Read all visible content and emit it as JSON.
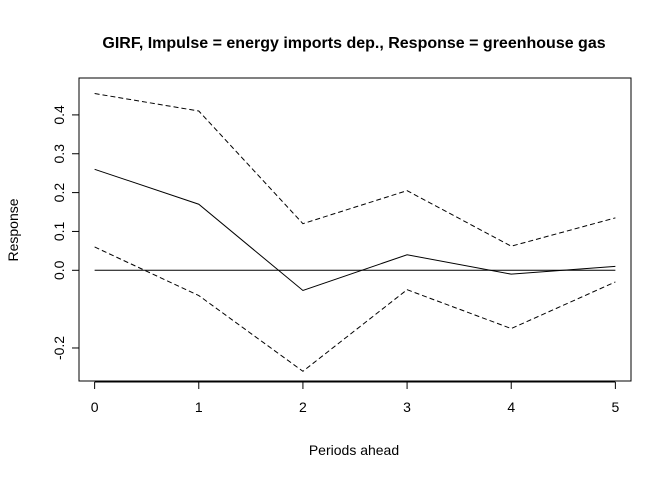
{
  "chart_data": {
    "type": "line",
    "title": "GIRF, Impulse = energy imports dep., Response = greenhouse gas",
    "xlabel": "Periods ahead",
    "ylabel": "Response",
    "x": [
      0,
      1,
      2,
      3,
      4,
      5
    ],
    "x_ticks": [
      "0",
      "1",
      "2",
      "3",
      "4",
      "5"
    ],
    "y_ticks": [
      "-0.2",
      "0.0",
      "0.1",
      "0.2",
      "0.3",
      "0.4"
    ],
    "xlim": [
      -0.15,
      5.15
    ],
    "ylim": [
      -0.285,
      0.495
    ],
    "zero_line": true,
    "grid": false,
    "series": [
      {
        "role": "upper",
        "style": "dashed",
        "color": "#000000",
        "values": [
          0.455,
          0.41,
          0.12,
          0.205,
          0.062,
          0.135
        ]
      },
      {
        "role": "response",
        "style": "solid",
        "color": "#000000",
        "values": [
          0.26,
          0.17,
          -0.052,
          0.04,
          -0.01,
          0.01
        ]
      },
      {
        "role": "lower",
        "style": "dashed",
        "color": "#000000",
        "values": [
          0.06,
          -0.065,
          -0.26,
          -0.05,
          -0.15,
          -0.03
        ]
      }
    ]
  }
}
